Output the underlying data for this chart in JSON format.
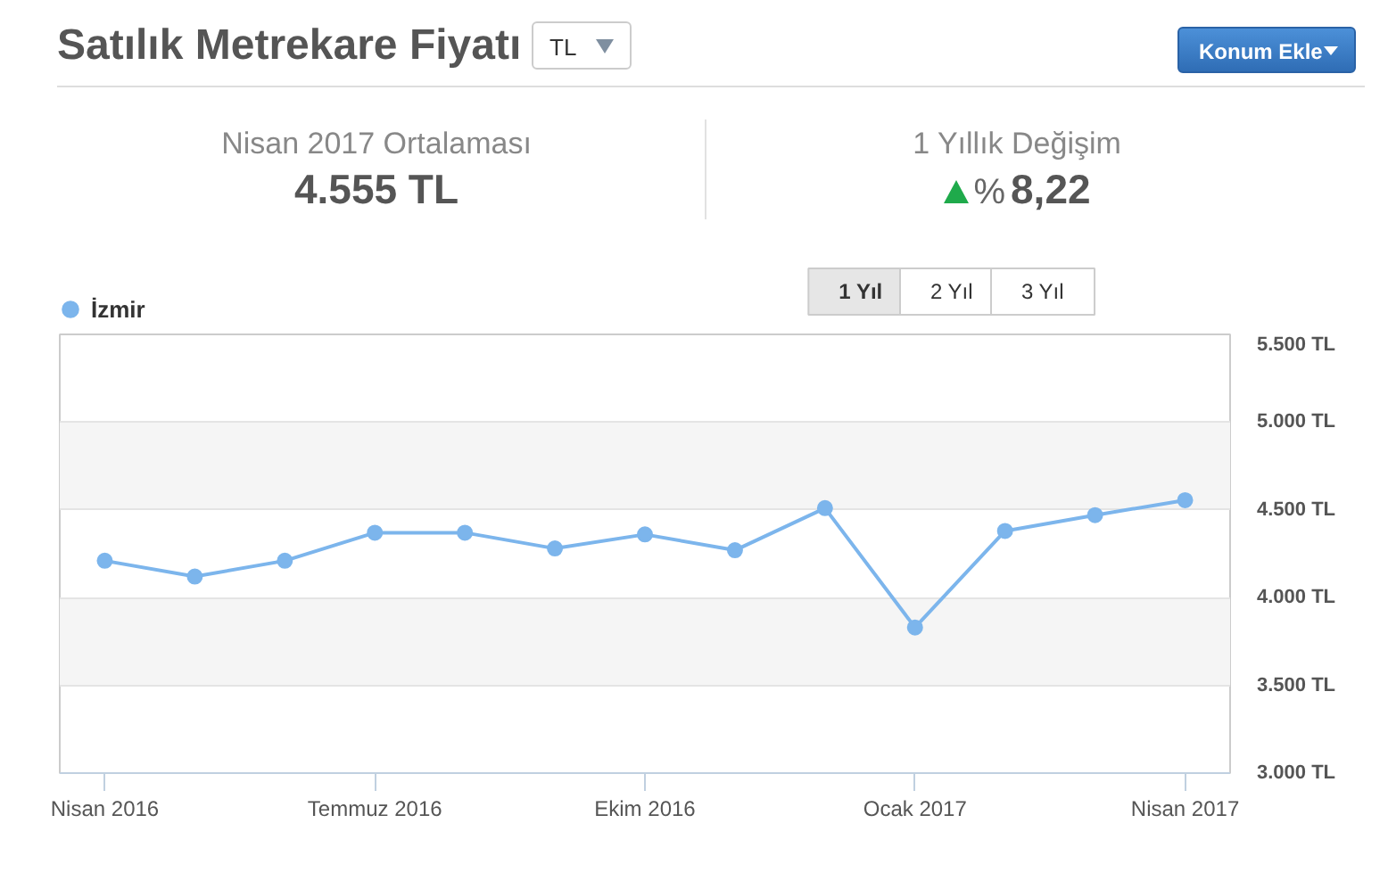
{
  "chart_data": {
    "type": "line",
    "title": "Satılık Metrekare Fiyatı",
    "categories": [
      "Nisan 2016",
      null,
      null,
      "Temmuz 2016",
      null,
      null,
      "Ekim 2016",
      null,
      null,
      "Ocak 2017",
      null,
      null,
      "Nisan 2017"
    ],
    "series": [
      {
        "name": "İzmir",
        "color": "#7cb5ec",
        "values": [
          4210,
          4120,
          4210,
          4370,
          4370,
          4280,
          4360,
          4270,
          4510,
          3830,
          4380,
          4470,
          4555
        ]
      }
    ],
    "ylim": [
      3000,
      5500
    ],
    "yticks": [
      {
        "value": 3000,
        "label": "3.000 TL"
      },
      {
        "value": 3500,
        "label": "3.500 TL"
      },
      {
        "value": 4000,
        "label": "4.000 TL"
      },
      {
        "value": 4500,
        "label": "4.500 TL"
      },
      {
        "value": 5000,
        "label": "5.000 TL"
      },
      {
        "value": 5500,
        "label": "5.500 TL"
      }
    ],
    "grid": "y",
    "legend": "top left",
    "marker": "circle",
    "line_style": "solid",
    "annotations": [
      "TL",
      "Konum Ekle",
      "Nisan 2017 Ortalaması",
      "4.555 TL",
      "1 Yıllık Değişim",
      "%",
      "8,22",
      "1 Yıl",
      "2 Yıl",
      "3 Yıl"
    ]
  }
}
